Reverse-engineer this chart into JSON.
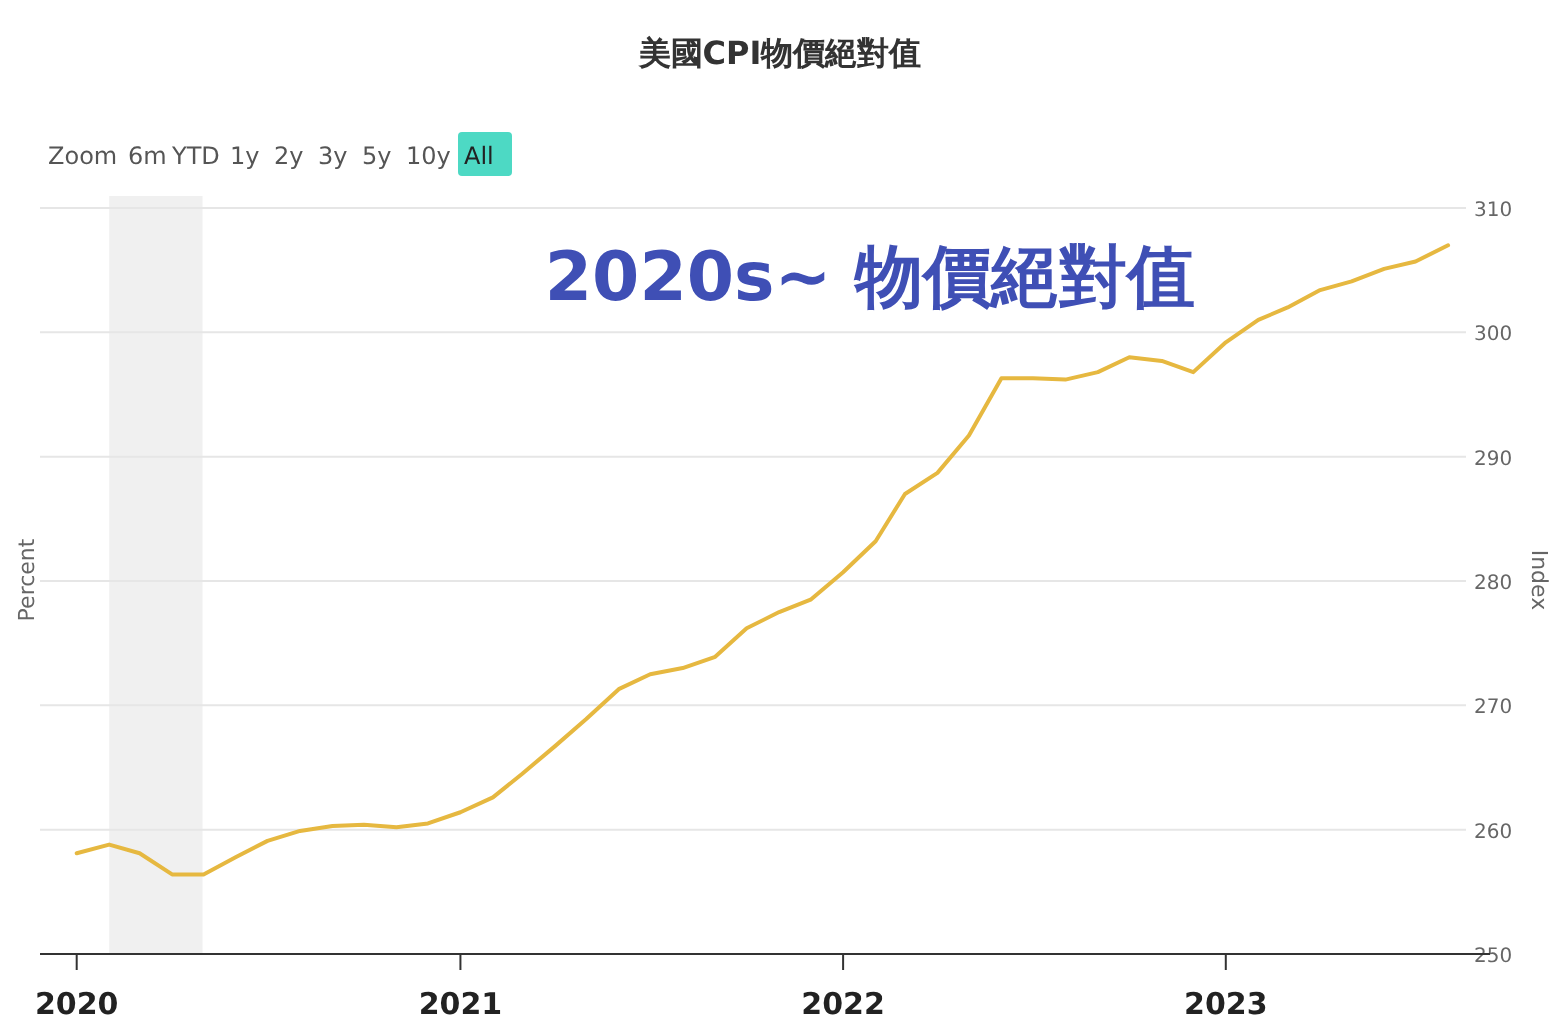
{
  "chart_data": {
    "type": "line",
    "title": "美國CPI物價絕對值",
    "ylabel": "Percent",
    "y2label": "Index",
    "annotations": [
      "2020s~ 物價絕對值",
      "Zoom",
      "6m",
      "YTD",
      "1y",
      "2y",
      "3y",
      "5y",
      "10y",
      "All"
    ],
    "x": [
      "2020-01",
      "2020-02",
      "2020-03",
      "2020-04",
      "2020-05",
      "2020-06",
      "2020-07",
      "2020-08",
      "2020-09",
      "2020-10",
      "2020-11",
      "2020-12",
      "2021-01",
      "2021-02",
      "2021-03",
      "2021-04",
      "2021-05",
      "2021-06",
      "2021-07",
      "2021-08",
      "2021-09",
      "2021-10",
      "2021-11",
      "2021-12",
      "2022-01",
      "2022-02",
      "2022-03",
      "2022-04",
      "2022-05",
      "2022-06",
      "2022-07",
      "2022-08",
      "2022-09",
      "2022-10",
      "2022-11",
      "2022-12",
      "2023-01",
      "2023-02",
      "2023-03",
      "2023-04",
      "2023-05",
      "2023-06",
      "2023-07",
      "2023-08"
    ],
    "series": [
      {
        "color": "#e6b840",
        "axis": "y2",
        "values": [
          258.1,
          258.8,
          258.1,
          256.4,
          256.4,
          257.8,
          259.1,
          259.9,
          260.3,
          260.4,
          260.2,
          260.5,
          261.4,
          262.6,
          264.5,
          266.7,
          268.9,
          271.3,
          272.5,
          273.0,
          273.9,
          276.2,
          277.5,
          278.5,
          280.7,
          283.2,
          287.0,
          288.7,
          291.7,
          296.3,
          296.3,
          296.2,
          296.8,
          298.0,
          297.7,
          296.8,
          299.2,
          301.0,
          302.0,
          303.4,
          304.1,
          305.1,
          305.7,
          307.0
        ]
      }
    ],
    "xlim": [
      "2019-11-27",
      "2023-09-10"
    ],
    "xticks": [
      {
        "value": "2020-01-01",
        "label": "2020"
      },
      {
        "value": "2021-01-01",
        "label": "2021"
      },
      {
        "value": "2022-01-01",
        "label": "2022"
      },
      {
        "value": "2023-01-01",
        "label": "2023"
      }
    ],
    "y2lim": [
      250,
      310
    ],
    "y2ticks": [
      250,
      260,
      270,
      280,
      290,
      300,
      310
    ],
    "bands": [
      {
        "axis": "x",
        "from": "2020-02-01",
        "to": "2020-04-30",
        "color": "#f0f0f0"
      }
    ],
    "grid": "y"
  }
}
